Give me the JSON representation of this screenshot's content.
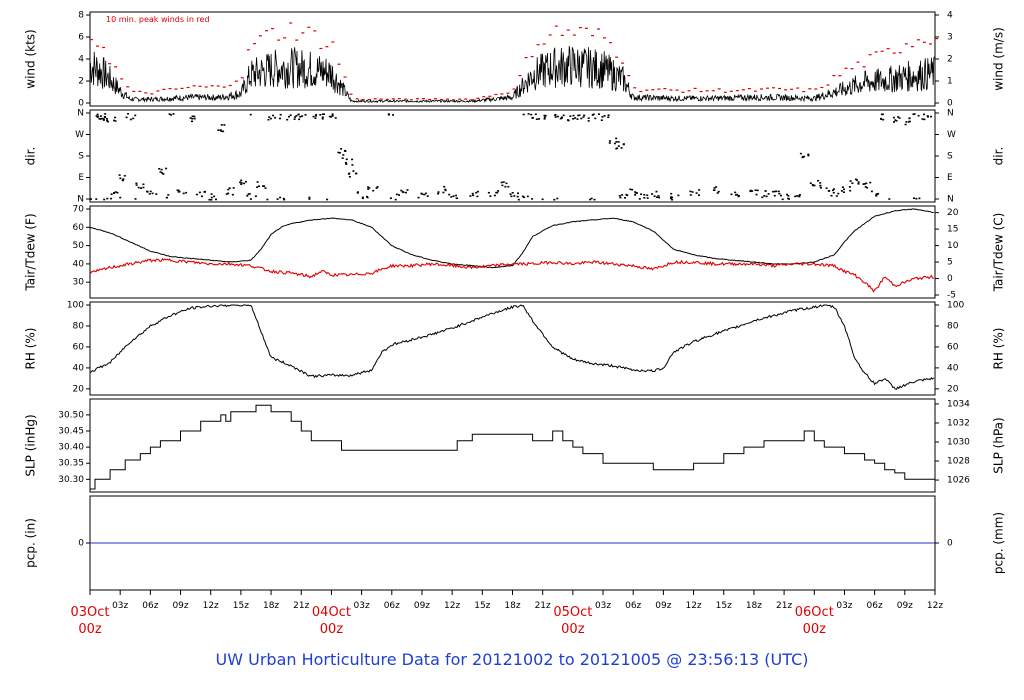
{
  "title": "UW Urban Horticulture Data for 20121002  to  20121005 @ 23:56:13  (UTC)",
  "colors": {
    "primary_trace": "#000000",
    "peak_wind": "#e00000",
    "dewpoint": "#e00000",
    "precip_line": "#2030d0",
    "date_label": "#e00000",
    "title": "#1f3fd0"
  },
  "chart_data": [
    {
      "type": "line",
      "panel": "wind",
      "ylabel_left": "wind (kts)",
      "ylabel_right": "wind (m/s)",
      "ylim": [
        0,
        8
      ],
      "yticks_left": [
        "0",
        "2",
        "4",
        "6",
        "8"
      ],
      "yticks_right": [
        "0",
        "1",
        "2",
        "3",
        "4"
      ],
      "annotation": "10 min. peak winds in red",
      "series": [
        {
          "role": "speed",
          "color": "#000000",
          "x_hours": [
            0,
            1,
            2,
            3,
            4,
            6,
            10,
            13,
            15,
            16,
            18,
            20,
            22,
            24,
            26,
            30,
            34,
            38,
            40,
            42,
            44,
            46,
            48,
            51,
            53,
            54,
            58,
            62,
            66,
            68,
            72,
            75,
            77,
            79,
            81,
            84
          ],
          "values": [
            4.0,
            3.5,
            2.5,
            1.3,
            0.4,
            0.4,
            0.6,
            0.6,
            1.0,
            3.0,
            3.6,
            3.8,
            3.6,
            3.2,
            0.2,
            0.2,
            0.2,
            0.2,
            0.4,
            0.6,
            3.0,
            3.8,
            4.0,
            3.6,
            2.5,
            0.6,
            0.5,
            0.5,
            0.6,
            0.6,
            0.5,
            1.5,
            2.2,
            2.4,
            2.8,
            3.2
          ]
        },
        {
          "role": "10 min peak",
          "color": "#e00000",
          "x_hours": [
            0,
            1,
            2,
            3,
            4,
            6,
            10,
            13,
            15,
            16,
            18,
            20,
            22,
            24,
            26,
            30,
            34,
            38,
            40,
            42,
            44,
            46,
            48,
            51,
            53,
            54,
            58,
            62,
            66,
            68,
            72,
            75,
            77,
            79,
            81,
            84
          ],
          "values": [
            6.0,
            5.6,
            3.8,
            2.2,
            1.0,
            1.0,
            1.5,
            1.5,
            2.6,
            5.6,
            6.3,
            6.8,
            6.2,
            5.2,
            0.4,
            0.4,
            0.4,
            0.4,
            0.8,
            1.2,
            5.4,
            6.5,
            6.5,
            6.0,
            4.0,
            1.3,
            1.2,
            1.2,
            1.2,
            1.3,
            1.2,
            3.0,
            3.8,
            4.5,
            5.6,
            6.4
          ]
        }
      ]
    },
    {
      "type": "scatter",
      "panel": "direction",
      "ylabel_left": "dir.",
      "ylabel_right": "dir.",
      "yticks": [
        "N",
        "E",
        "S",
        "W",
        "N"
      ],
      "ylim_degrees": [
        0,
        360
      ],
      "points": {
        "x_hours": [
          0.5,
          1,
          1.5,
          2,
          2.5,
          3,
          4,
          5,
          6,
          7,
          8,
          9,
          10,
          11,
          12,
          13,
          14,
          15,
          16,
          17,
          18,
          19,
          20,
          21,
          22,
          23,
          24,
          25,
          25.5,
          26,
          27,
          28,
          30,
          31,
          33,
          35,
          36,
          38,
          40,
          41,
          42,
          43,
          44,
          45,
          46,
          47,
          48,
          49,
          50,
          51,
          52,
          52.5,
          53,
          54,
          55,
          56,
          58,
          60,
          62,
          64,
          66,
          67,
          68,
          69,
          70,
          71,
          72,
          73,
          74,
          75,
          76,
          77,
          78,
          79,
          80,
          81,
          82,
          83
        ],
        "degrees": [
          350,
          345,
          355,
          340,
          20,
          90,
          350,
          60,
          30,
          120,
          10,
          40,
          340,
          25,
          15,
          300,
          35,
          80,
          10,
          60,
          350,
          355,
          345,
          350,
          355,
          350,
          345,
          200,
          160,
          110,
          20,
          40,
          10,
          30,
          20,
          40,
          15,
          25,
          30,
          60,
          20,
          10,
          350,
          350,
          355,
          345,
          350,
          340,
          355,
          345,
          250,
          220,
          20,
          30,
          10,
          20,
          15,
          30,
          40,
          20,
          35,
          25,
          30,
          15,
          25,
          180,
          70,
          50,
          30,
          40,
          80,
          60,
          30,
          350,
          340,
          330,
          355,
          350
        ]
      }
    },
    {
      "type": "line",
      "panel": "temperature",
      "ylabel_left": "Tair/Tdew (F)",
      "ylabel_right": "Tair/Tdew (C)",
      "ylim": [
        23,
        70
      ],
      "yticks_left": [
        "30",
        "40",
        "50",
        "60",
        "70"
      ],
      "yticks_right": [
        "-5",
        "0",
        "5",
        "10",
        "15",
        "20"
      ],
      "series": [
        {
          "role": "air temperature",
          "color": "#000000",
          "x_hours": [
            0,
            2,
            4,
            6,
            8,
            10,
            12,
            14,
            16,
            17,
            18,
            19,
            20,
            22,
            24,
            26,
            28,
            30,
            32,
            34,
            36,
            38,
            40,
            42,
            43,
            44,
            46,
            48,
            50,
            52,
            54,
            56,
            58,
            60,
            62,
            64,
            66,
            68,
            70,
            72,
            74,
            75,
            76,
            77,
            78,
            80,
            82,
            84
          ],
          "values": [
            60,
            57,
            52,
            47,
            44,
            43,
            42,
            41,
            42,
            48,
            56,
            60,
            62,
            64,
            65,
            64,
            60,
            50,
            45,
            42,
            40,
            39,
            38,
            39,
            46,
            55,
            61,
            63,
            64,
            65,
            63,
            58,
            48,
            45,
            43,
            42,
            41,
            40,
            40,
            41,
            45,
            52,
            58,
            62,
            66,
            69,
            70,
            68
          ]
        },
        {
          "role": "dewpoint",
          "color": "#e00000",
          "x_hours": [
            0,
            2,
            4,
            6,
            8,
            10,
            12,
            14,
            16,
            18,
            20,
            22,
            23,
            24,
            26,
            28,
            30,
            32,
            34,
            36,
            38,
            40,
            42,
            44,
            46,
            48,
            50,
            52,
            54,
            56,
            58,
            60,
            62,
            64,
            66,
            68,
            70,
            72,
            74,
            75,
            76,
            77,
            78,
            79,
            80,
            82,
            84
          ],
          "values": [
            35,
            38,
            40,
            42,
            42,
            41,
            40,
            40,
            39,
            36,
            35,
            33,
            36,
            34,
            34,
            35,
            39,
            39,
            40,
            39,
            38,
            39,
            40,
            40,
            41,
            40,
            41,
            40,
            39,
            37,
            41,
            41,
            40,
            40,
            40,
            39,
            40,
            40,
            39,
            36,
            34,
            30,
            25,
            33,
            28,
            32,
            33
          ]
        }
      ]
    },
    {
      "type": "line",
      "panel": "humidity",
      "ylabel_left": "RH (%)",
      "ylabel_right": "RH (%)",
      "ylim": [
        17,
        100
      ],
      "yticks": [
        "20",
        "40",
        "60",
        "80",
        "100"
      ],
      "series": [
        {
          "role": "relative humidity",
          "color": "#000000",
          "x_hours": [
            0,
            2,
            4,
            5,
            6,
            8,
            10,
            12,
            14,
            15,
            16,
            17,
            18,
            20,
            22,
            24,
            26,
            28,
            29,
            30,
            32,
            34,
            36,
            38,
            40,
            42,
            43,
            44,
            46,
            48,
            50,
            52,
            54,
            56,
            57,
            58,
            60,
            62,
            64,
            66,
            68,
            70,
            72,
            73,
            74,
            75,
            76,
            77,
            78,
            79,
            80,
            82,
            84
          ],
          "values": [
            36,
            45,
            65,
            72,
            80,
            90,
            97,
            99,
            100,
            100,
            100,
            75,
            50,
            42,
            32,
            33,
            33,
            38,
            55,
            62,
            67,
            72,
            78,
            85,
            92,
            98,
            100,
            85,
            60,
            48,
            44,
            42,
            38,
            37,
            40,
            55,
            65,
            72,
            78,
            85,
            90,
            95,
            98,
            100,
            98,
            80,
            50,
            35,
            25,
            30,
            20,
            27,
            30
          ]
        }
      ]
    },
    {
      "type": "line",
      "panel": "pressure",
      "ylabel_left": "SLP (inHg)",
      "ylabel_right": "SLP (hPa)",
      "ylim": [
        30.27,
        30.54
      ],
      "yticks_left": [
        "30.30",
        "30.35",
        "30.40",
        "30.45",
        "30.50"
      ],
      "yticks_right": [
        "1026",
        "1028",
        "1030",
        "1032",
        "1034"
      ],
      "series": [
        {
          "role": "sea level pressure",
          "color": "#000000",
          "step": true,
          "x_hours": [
            0,
            0.5,
            2,
            3.5,
            5,
            6,
            7,
            9,
            11,
            13,
            13.5,
            14,
            16.5,
            18,
            20,
            21,
            22,
            25,
            30,
            36.5,
            38,
            44,
            45,
            46,
            47,
            48,
            49,
            51,
            56,
            58,
            60,
            63,
            65,
            67,
            69,
            71,
            72,
            73,
            75,
            77,
            78,
            79,
            80,
            81,
            84
          ],
          "values": [
            30.27,
            30.3,
            30.33,
            30.36,
            30.38,
            30.4,
            30.42,
            30.45,
            30.48,
            30.5,
            30.48,
            30.51,
            30.53,
            30.51,
            30.48,
            30.45,
            30.42,
            30.39,
            30.39,
            30.42,
            30.44,
            30.42,
            30.42,
            30.45,
            30.42,
            30.4,
            30.38,
            30.35,
            30.33,
            30.33,
            30.35,
            30.38,
            30.4,
            30.42,
            30.42,
            30.45,
            30.42,
            30.4,
            30.38,
            30.36,
            30.35,
            30.33,
            30.32,
            30.3,
            30.3
          ]
        }
      ]
    },
    {
      "type": "line",
      "panel": "precipitation",
      "ylabel_left": "pcp. (in)",
      "ylabel_right": "pcp. (mm)",
      "yticks_left": [
        "0"
      ],
      "yticks_right": [
        "0"
      ],
      "series": [
        {
          "role": "precipitation",
          "color": "#2030d0",
          "x_hours": [
            0,
            84
          ],
          "values": [
            0,
            0
          ]
        }
      ]
    }
  ],
  "x_axis": {
    "range_hours": [
      0,
      84
    ],
    "hour_ticks": [
      "03z",
      "06z",
      "09z",
      "12z",
      "15z",
      "18z",
      "21z"
    ],
    "date_ticks": [
      {
        "date": "03Oct",
        "hour": "00z"
      },
      {
        "date": "04Oct",
        "hour": "00z"
      },
      {
        "date": "05Oct",
        "hour": "00z"
      },
      {
        "date": "06Oct",
        "hour": "00z"
      }
    ]
  }
}
